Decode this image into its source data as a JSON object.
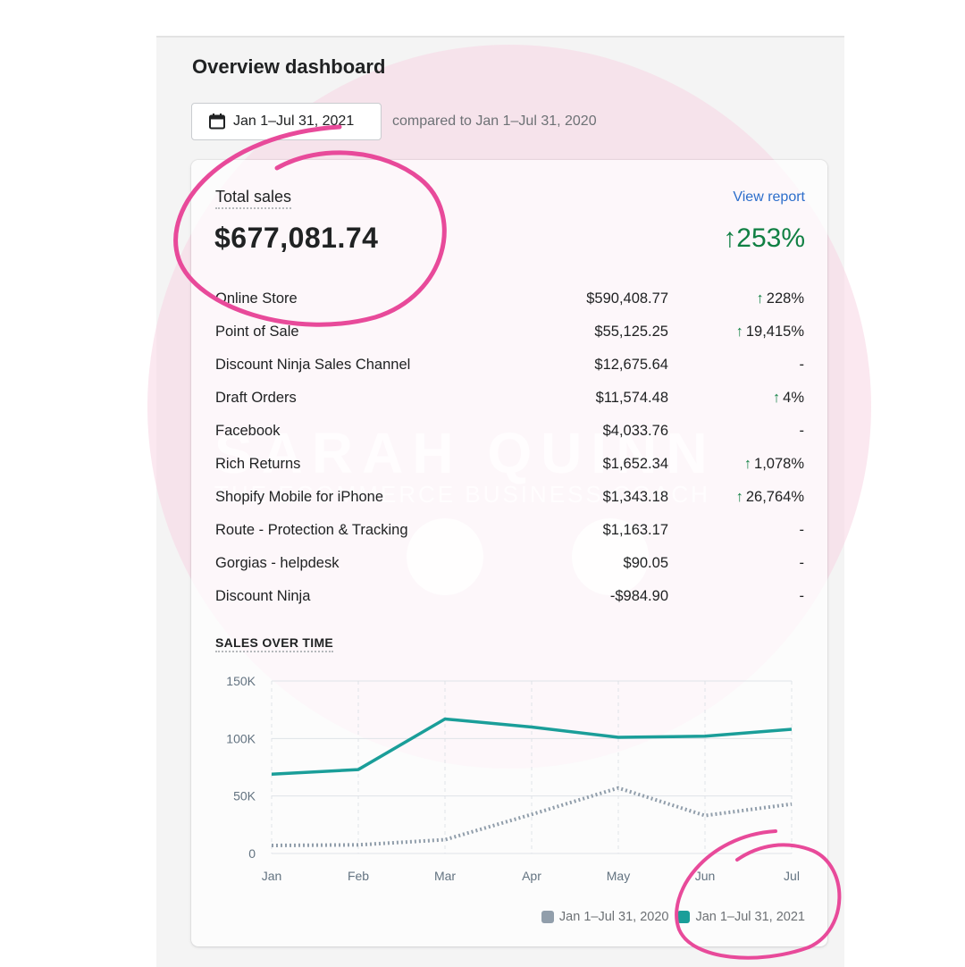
{
  "header": {
    "title": "Overview dashboard",
    "date_range_label": "Jan 1–Jul 31, 2021",
    "compared_text": "compared to Jan 1–Jul 31, 2020"
  },
  "watermark": {
    "line1": "SARAH QUINN",
    "line2": "THE ECOMMERCE BUSINESS COACH"
  },
  "total_sales": {
    "label": "Total sales",
    "view_report": "View report",
    "value": "$677,081.74",
    "change": "253%"
  },
  "channels": [
    {
      "name": "Online Store",
      "amount": "$590,408.77",
      "arrow": "↑",
      "change": "228%"
    },
    {
      "name": "Point of Sale",
      "amount": "$55,125.25",
      "arrow": "↑",
      "change": "19,415%"
    },
    {
      "name": "Discount Ninja Sales Channel",
      "amount": "$12,675.64",
      "arrow": "",
      "change": "-"
    },
    {
      "name": "Draft Orders",
      "amount": "$11,574.48",
      "arrow": "↑",
      "change": "4%"
    },
    {
      "name": "Facebook",
      "amount": "$4,033.76",
      "arrow": "",
      "change": "-"
    },
    {
      "name": "Rich Returns",
      "amount": "$1,652.34",
      "arrow": "↑",
      "change": "1,078%"
    },
    {
      "name": "Shopify Mobile for iPhone",
      "amount": "$1,343.18",
      "arrow": "↑",
      "change": "26,764%"
    },
    {
      "name": "Route - Protection & Tracking",
      "amount": "$1,163.17",
      "arrow": "",
      "change": "-"
    },
    {
      "name": "Gorgias - helpdesk",
      "amount": "$90.05",
      "arrow": "",
      "change": "-"
    },
    {
      "name": "Discount Ninja",
      "amount": "-$984.90",
      "arrow": "",
      "change": "-"
    }
  ],
  "sales_over_time": {
    "label": "SALES OVER TIME"
  },
  "chart_data": {
    "type": "line",
    "x": [
      "Jan",
      "Feb",
      "Mar",
      "Apr",
      "May",
      "Jun",
      "Jul"
    ],
    "y_ticks": [
      "0",
      "50K",
      "100K",
      "150K"
    ],
    "ylim": [
      0,
      150000
    ],
    "series": [
      {
        "name": "Jan 1–Jul 31, 2020",
        "color": "#919eab",
        "style": "dotted",
        "values": [
          7000,
          7500,
          12000,
          34000,
          57000,
          33000,
          43000
        ]
      },
      {
        "name": "Jan 1–Jul 31, 2021",
        "color": "#1a9e99",
        "style": "solid",
        "values": [
          69000,
          73000,
          117000,
          110000,
          101000,
          102000,
          108000
        ]
      }
    ],
    "legend_position": "bottom-right",
    "grid": true
  },
  "colors": {
    "accent_link": "#2c6ecb",
    "positive": "#108043",
    "annotation_pink": "#e84a9a",
    "series_2021": "#1a9e99",
    "series_2020": "#919eab"
  }
}
